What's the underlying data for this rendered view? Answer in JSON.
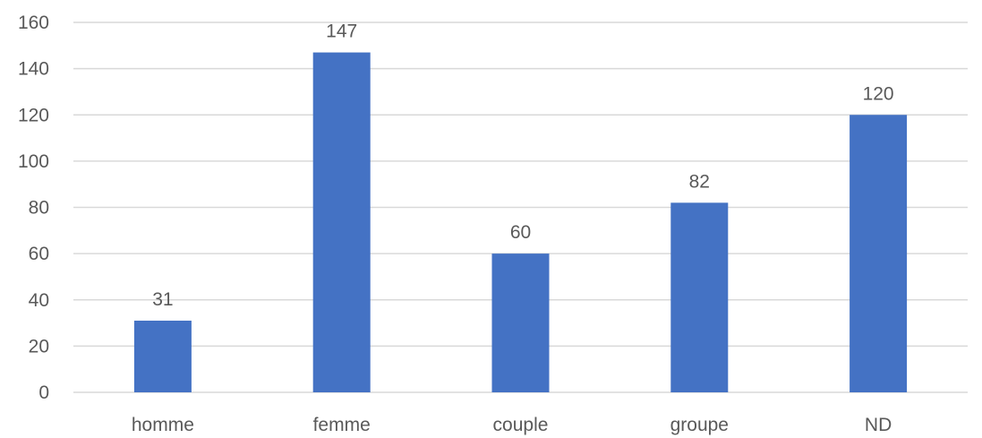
{
  "chart_data": {
    "type": "bar",
    "categories": [
      "homme",
      "femme",
      "couple",
      "groupe",
      "ND"
    ],
    "values": [
      31,
      147,
      60,
      82,
      120
    ],
    "data_labels": [
      "31",
      "147",
      "60",
      "82",
      "120"
    ],
    "title": "",
    "xlabel": "",
    "ylabel": "",
    "ylim": [
      0,
      160
    ],
    "yticks": [
      0,
      20,
      40,
      60,
      80,
      100,
      120,
      140,
      160
    ],
    "ytick_labels": [
      "0",
      "20",
      "40",
      "60",
      "80",
      "100",
      "120",
      "140",
      "160"
    ],
    "grid": true,
    "legend": "none",
    "bar_color": "#4472C4",
    "grid_color": "#D9D9D9",
    "text_color": "#595959"
  }
}
